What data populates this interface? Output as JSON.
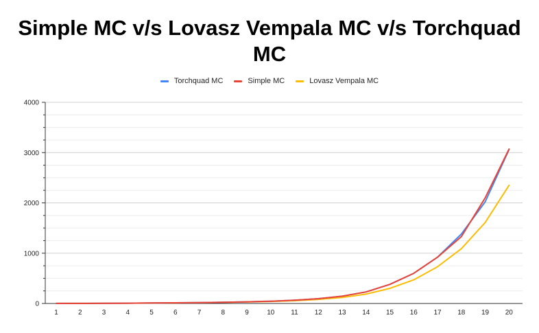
{
  "chart_data": {
    "type": "line",
    "title": "Simple MC v/s Lovasz Vempala MC v/s Torchquad MC",
    "xlabel": "",
    "ylabel": "",
    "categories": [
      "1",
      "2",
      "3",
      "4",
      "5",
      "6",
      "7",
      "8",
      "9",
      "10",
      "11",
      "12",
      "13",
      "14",
      "15",
      "16",
      "17",
      "18",
      "19",
      "20"
    ],
    "ylim": [
      0,
      4000
    ],
    "yticks": [
      0,
      1000,
      2000,
      3000,
      4000
    ],
    "grid": true,
    "legend_position": "top-center",
    "series": [
      {
        "name": "Torchquad MC",
        "color": "#4285f4",
        "values": [
          1,
          2,
          4,
          6,
          9,
          13,
          18,
          25,
          33,
          45,
          65,
          95,
          145,
          230,
          380,
          600,
          920,
          1380,
          2020,
          3060
        ]
      },
      {
        "name": "Simple MC",
        "color": "#ea4335",
        "values": [
          1,
          2,
          4,
          6,
          9,
          13,
          18,
          25,
          33,
          45,
          65,
          95,
          145,
          230,
          380,
          600,
          920,
          1330,
          2100,
          3070
        ]
      },
      {
        "name": "Lovasz Vempala MC",
        "color": "#fbbc04",
        "values": [
          1,
          2,
          4,
          6,
          9,
          12,
          16,
          22,
          29,
          40,
          55,
          80,
          120,
          185,
          300,
          470,
          730,
          1090,
          1610,
          2350
        ]
      }
    ]
  }
}
